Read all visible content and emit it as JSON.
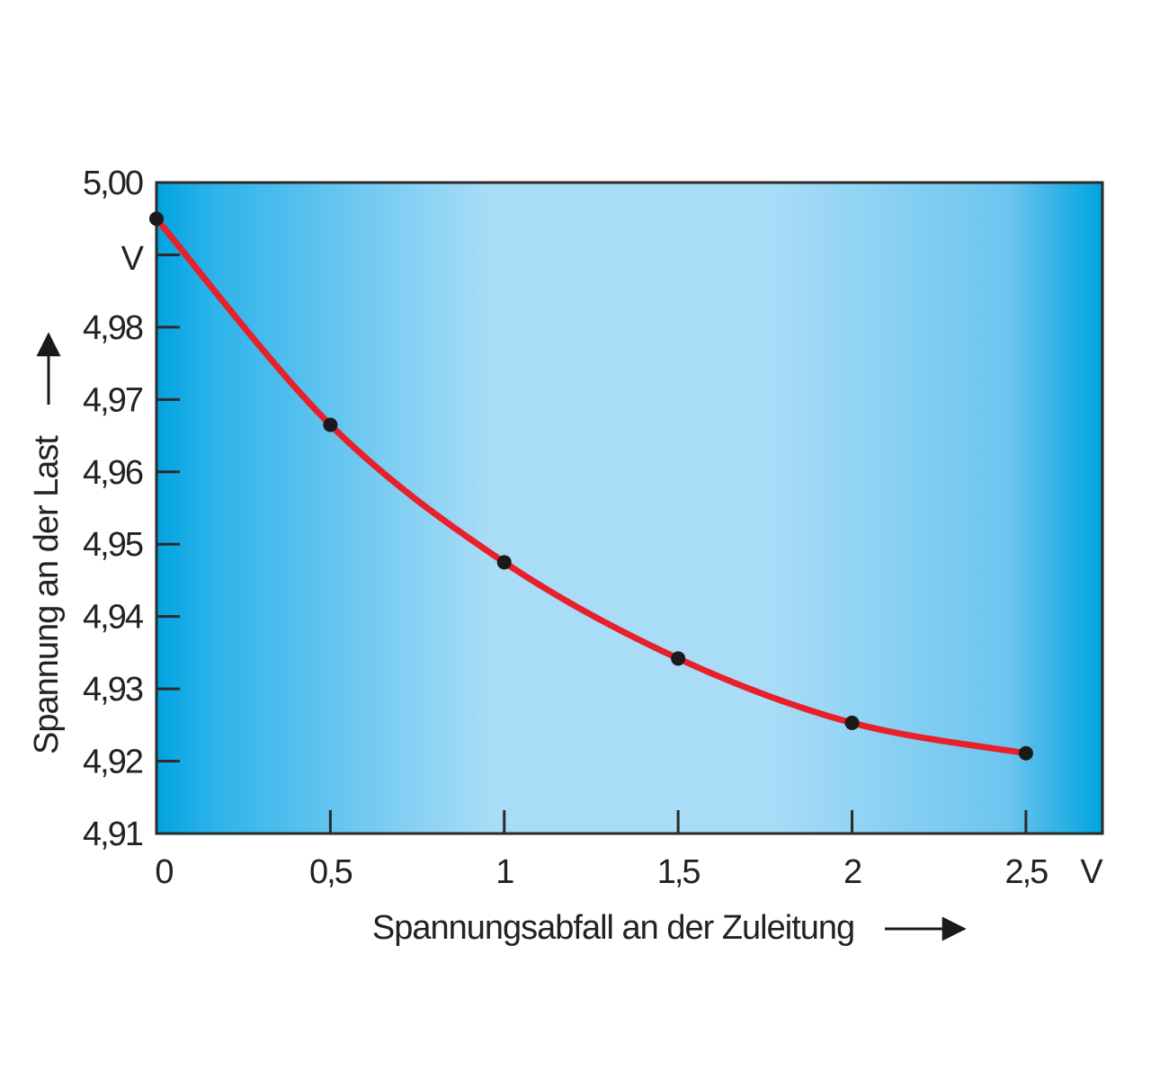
{
  "chart_data": {
    "type": "line",
    "title": "",
    "xlabel": "Spannungsabfall an der Zuleitung",
    "ylabel": "Spannung an der Last",
    "x_unit": "V",
    "y_unit": "V",
    "xlim": [
      0,
      2.72
    ],
    "ylim": [
      4.91,
      5.0
    ],
    "x_ticks": [
      0,
      0.5,
      1,
      1.5,
      2,
      2.5
    ],
    "x_tick_labels": [
      "0",
      "0,5",
      "1",
      "1,5",
      "2",
      "2,5"
    ],
    "y_ticks": [
      4.91,
      4.92,
      4.93,
      4.94,
      4.95,
      4.96,
      4.97,
      4.98,
      4.99,
      5.0
    ],
    "y_tick_labels": [
      "4,91",
      "4,92",
      "4,93",
      "4,94",
      "4,95",
      "4,96",
      "4,97",
      "4,98",
      "",
      "5,00"
    ],
    "grid": false,
    "series": [
      {
        "x": [
          0,
          0.5,
          1,
          1.5,
          2,
          2.5
        ],
        "values": [
          4.995,
          4.9665,
          4.9475,
          4.9342,
          4.9253,
          4.9211
        ],
        "color": "#e8202a",
        "marker_color": "#1a1a1a"
      }
    ],
    "background_colors": {
      "edge": "#00a3e0",
      "center": "#a8dcf7"
    }
  }
}
